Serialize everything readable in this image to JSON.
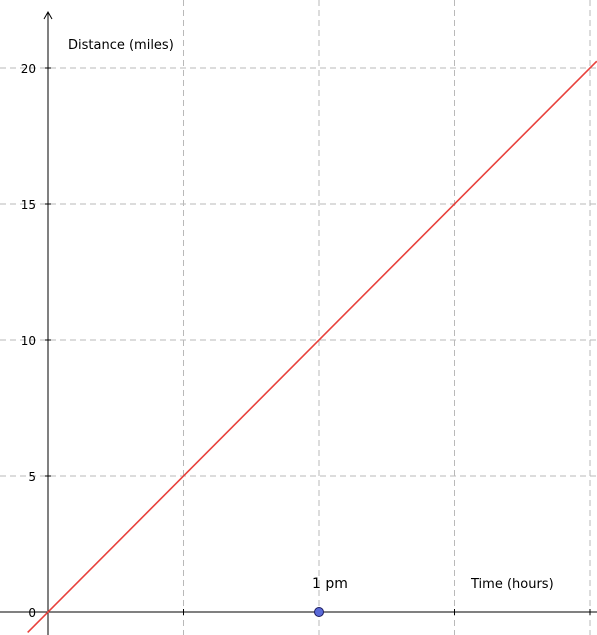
{
  "chart_data": {
    "type": "line",
    "xlabel": "Time (hours)",
    "ylabel": "Distance (miles)",
    "y_ticks": [
      0,
      5,
      10,
      15,
      20
    ],
    "x_grid": [
      0,
      1,
      2,
      3,
      4
    ],
    "xlim": [
      -0.15,
      4.05
    ],
    "ylim": [
      -0.8,
      22
    ],
    "grid": true,
    "series": [
      {
        "x": [
          -0.15,
          4.05
        ],
        "y": [
          -0.75,
          20.25
        ],
        "color": "#e8413c"
      }
    ],
    "points": [
      {
        "x": 2,
        "y": 0,
        "label": "1 pm",
        "color": "#5a6ad8"
      }
    ]
  }
}
